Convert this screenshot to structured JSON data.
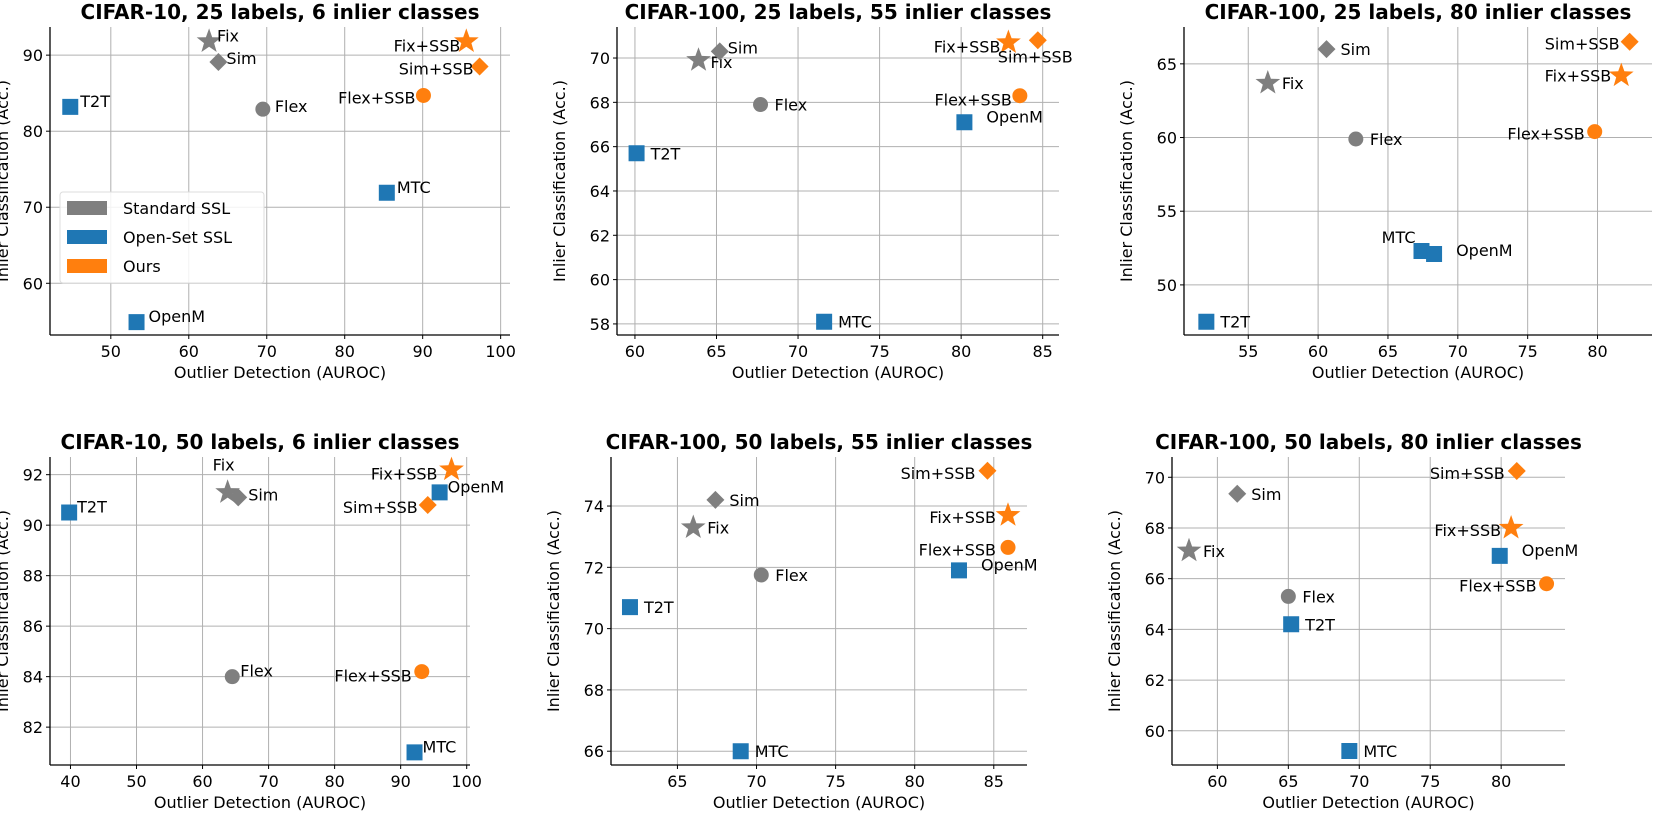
{
  "colors": {
    "Standard SSL": "#7f7f7f",
    "Open-Set SSL": "#1f77b4",
    "Ours": "#ff7f0e"
  },
  "legend": {
    "placement": "lower-left of first panel",
    "entries": [
      {
        "label": "Standard SSL",
        "color": "#7f7f7f"
      },
      {
        "label": "Open-Set SSL",
        "color": "#1f77b4"
      },
      {
        "label": "Ours",
        "color": "#ff7f0e"
      }
    ]
  },
  "chart_data": [
    {
      "type": "scatter",
      "title": "CIFAR-10, 25 labels, 6 inlier classes",
      "xlabel": "Outlier Detection (AUROC)",
      "ylabel": "Inlier Classification (Acc.)",
      "xlim": [
        42.2,
        101.2
      ],
      "ylim": [
        53.2,
        93.7
      ],
      "xticks": [
        50,
        60,
        70,
        80,
        90,
        100
      ],
      "yticks": [
        60,
        70,
        80,
        90
      ],
      "grid": true,
      "legend": true,
      "points": [
        {
          "label": "Fix",
          "group": "Standard SSL",
          "marker": "star",
          "x": 62.6,
          "y": 91.8
        },
        {
          "label": "Sim",
          "group": "Standard SSL",
          "marker": "diamond",
          "x": 63.8,
          "y": 89.1
        },
        {
          "label": "Flex",
          "group": "Standard SSL",
          "marker": "circle",
          "x": 69.5,
          "y": 82.9
        },
        {
          "label": "T2T",
          "group": "Open-Set SSL",
          "marker": "square",
          "x": 44.8,
          "y": 83.2
        },
        {
          "label": "MTC",
          "group": "Open-Set SSL",
          "marker": "square",
          "x": 85.4,
          "y": 71.9
        },
        {
          "label": "OpenM",
          "group": "Open-Set SSL",
          "marker": "square",
          "x": 53.3,
          "y": 54.9
        },
        {
          "label": "Fix+SSB",
          "group": "Ours",
          "marker": "star",
          "x": 95.6,
          "y": 91.8
        },
        {
          "label": "Sim+SSB",
          "group": "Ours",
          "marker": "diamond",
          "x": 97.3,
          "y": 88.5
        },
        {
          "label": "Flex+SSB",
          "group": "Ours",
          "marker": "circle",
          "x": 90.1,
          "y": 84.7
        }
      ]
    },
    {
      "type": "scatter",
      "title": "CIFAR-100, 25 labels, 55 inlier classes",
      "xlabel": "Outlier Detection (AUROC)",
      "ylabel": "Inlier Classification (Acc.)",
      "xlim": [
        58.9,
        86.0
      ],
      "ylim": [
        57.5,
        71.4
      ],
      "xticks": [
        60,
        65,
        70,
        75,
        80,
        85
      ],
      "yticks": [
        58,
        60,
        62,
        64,
        66,
        68,
        70
      ],
      "grid": true,
      "legend": false,
      "points": [
        {
          "label": "Fix",
          "group": "Standard SSL",
          "marker": "star",
          "x": 63.9,
          "y": 69.9
        },
        {
          "label": "Sim",
          "group": "Standard SSL",
          "marker": "diamond",
          "x": 65.2,
          "y": 70.3
        },
        {
          "label": "Flex",
          "group": "Standard SSL",
          "marker": "circle",
          "x": 67.7,
          "y": 67.9
        },
        {
          "label": "T2T",
          "group": "Open-Set SSL",
          "marker": "square",
          "x": 60.1,
          "y": 65.7
        },
        {
          "label": "MTC",
          "group": "Open-Set SSL",
          "marker": "square",
          "x": 71.6,
          "y": 58.1
        },
        {
          "label": "OpenM",
          "group": "Open-Set SSL",
          "marker": "square",
          "x": 80.2,
          "y": 67.1
        },
        {
          "label": "Fix+SSB",
          "group": "Ours",
          "marker": "star",
          "x": 82.9,
          "y": 70.7
        },
        {
          "label": "Sim+SSB",
          "group": "Ours",
          "marker": "diamond",
          "x": 84.7,
          "y": 70.8
        },
        {
          "label": "Flex+SSB",
          "group": "Ours",
          "marker": "circle",
          "x": 83.6,
          "y": 68.3
        }
      ]
    },
    {
      "type": "scatter",
      "title": "CIFAR-100, 25 labels, 80 inlier classes",
      "xlabel": "Outlier Detection (AUROC)",
      "ylabel": "Inlier Classification (Acc.)",
      "xlim": [
        50.4,
        83.9
      ],
      "ylim": [
        46.6,
        67.5
      ],
      "xticks": [
        55,
        60,
        65,
        70,
        75,
        80
      ],
      "yticks": [
        50,
        55,
        60,
        65
      ],
      "grid": true,
      "legend": false,
      "points": [
        {
          "label": "Fix",
          "group": "Standard SSL",
          "marker": "star",
          "x": 56.4,
          "y": 63.7
        },
        {
          "label": "Sim",
          "group": "Standard SSL",
          "marker": "diamond",
          "x": 60.6,
          "y": 66.0
        },
        {
          "label": "Flex",
          "group": "Standard SSL",
          "marker": "circle",
          "x": 62.7,
          "y": 59.9
        },
        {
          "label": "T2T",
          "group": "Open-Set SSL",
          "marker": "square",
          "x": 52.0,
          "y": 47.5
        },
        {
          "label": "MTC",
          "group": "Open-Set SSL",
          "marker": "square",
          "x": 67.4,
          "y": 52.3
        },
        {
          "label": "OpenM",
          "group": "Open-Set SSL",
          "marker": "square",
          "x": 68.3,
          "y": 52.1
        },
        {
          "label": "Fix+SSB",
          "group": "Ours",
          "marker": "star",
          "x": 81.7,
          "y": 64.2
        },
        {
          "label": "Sim+SSB",
          "group": "Ours",
          "marker": "diamond",
          "x": 82.3,
          "y": 66.5
        },
        {
          "label": "Flex+SSB",
          "group": "Ours",
          "marker": "circle",
          "x": 79.8,
          "y": 60.4
        }
      ]
    },
    {
      "type": "scatter",
      "title": "CIFAR-10, 50 labels, 6 inlier classes",
      "xlabel": "Outlier Detection (AUROC)",
      "ylabel": "Inlier Classification (Acc.)",
      "xlim": [
        36.9,
        100.5
      ],
      "ylim": [
        80.5,
        92.7
      ],
      "xticks": [
        40,
        50,
        60,
        70,
        80,
        90,
        100
      ],
      "yticks": [
        82,
        84,
        86,
        88,
        90,
        92
      ],
      "grid": true,
      "legend": false,
      "points": [
        {
          "label": "Fix",
          "group": "Standard SSL",
          "marker": "star",
          "x": 63.8,
          "y": 91.3
        },
        {
          "label": "Sim",
          "group": "Standard SSL",
          "marker": "diamond",
          "x": 65.4,
          "y": 91.1
        },
        {
          "label": "Flex",
          "group": "Standard SSL",
          "marker": "circle",
          "x": 64.5,
          "y": 84.0
        },
        {
          "label": "T2T",
          "group": "Open-Set SSL",
          "marker": "square",
          "x": 39.8,
          "y": 90.5
        },
        {
          "label": "MTC",
          "group": "Open-Set SSL",
          "marker": "square",
          "x": 92.1,
          "y": 81.0
        },
        {
          "label": "OpenM",
          "group": "Open-Set SSL",
          "marker": "square",
          "x": 95.9,
          "y": 91.3
        },
        {
          "label": "Fix+SSB",
          "group": "Ours",
          "marker": "star",
          "x": 97.7,
          "y": 92.2
        },
        {
          "label": "Sim+SSB",
          "group": "Ours",
          "marker": "diamond",
          "x": 94.1,
          "y": 90.8
        },
        {
          "label": "Flex+SSB",
          "group": "Ours",
          "marker": "circle",
          "x": 93.2,
          "y": 84.2
        }
      ]
    },
    {
      "type": "scatter",
      "title": "CIFAR-100, 50 labels, 55 inlier classes",
      "xlabel": "Outlier Detection (AUROC)",
      "ylabel": "Inlier Classification (Acc.)",
      "xlim": [
        60.8,
        87.1
      ],
      "ylim": [
        65.55,
        75.6
      ],
      "xticks": [
        65,
        70,
        75,
        80,
        85
      ],
      "yticks": [
        66,
        68,
        70,
        72,
        74
      ],
      "grid": true,
      "legend": false,
      "points": [
        {
          "label": "Fix",
          "group": "Standard SSL",
          "marker": "star",
          "x": 66.0,
          "y": 73.3
        },
        {
          "label": "Sim",
          "group": "Standard SSL",
          "marker": "diamond",
          "x": 67.4,
          "y": 74.2
        },
        {
          "label": "Flex",
          "group": "Standard SSL",
          "marker": "circle",
          "x": 70.3,
          "y": 71.75
        },
        {
          "label": "T2T",
          "group": "Open-Set SSL",
          "marker": "square",
          "x": 62.0,
          "y": 70.7
        },
        {
          "label": "MTC",
          "group": "Open-Set SSL",
          "marker": "square",
          "x": 69.0,
          "y": 66.0
        },
        {
          "label": "OpenM",
          "group": "Open-Set SSL",
          "marker": "square",
          "x": 82.8,
          "y": 71.9
        },
        {
          "label": "Fix+SSB",
          "group": "Ours",
          "marker": "star",
          "x": 85.9,
          "y": 73.7
        },
        {
          "label": "Sim+SSB",
          "group": "Ours",
          "marker": "diamond",
          "x": 84.6,
          "y": 75.15
        },
        {
          "label": "Flex+SSB",
          "group": "Ours",
          "marker": "circle",
          "x": 85.9,
          "y": 72.65
        }
      ]
    },
    {
      "type": "scatter",
      "title": "CIFAR-100, 50 labels, 80 inlier classes",
      "xlabel": "Outlier Detection (AUROC)",
      "ylabel": "Inlier Classification (Acc.)",
      "xlim": [
        56.8,
        84.5
      ],
      "ylim": [
        58.65,
        70.8
      ],
      "xticks": [
        60,
        65,
        70,
        75,
        80
      ],
      "yticks": [
        60,
        62,
        64,
        66,
        68,
        70
      ],
      "grid": true,
      "legend": false,
      "points": [
        {
          "label": "Fix",
          "group": "Standard SSL",
          "marker": "star",
          "x": 58.0,
          "y": 67.1
        },
        {
          "label": "Sim",
          "group": "Standard SSL",
          "marker": "diamond",
          "x": 61.4,
          "y": 69.35
        },
        {
          "label": "Flex",
          "group": "Standard SSL",
          "marker": "circle",
          "x": 65.0,
          "y": 65.3
        },
        {
          "label": "T2T",
          "group": "Open-Set SSL",
          "marker": "square",
          "x": 65.2,
          "y": 64.2
        },
        {
          "label": "MTC",
          "group": "Open-Set SSL",
          "marker": "square",
          "x": 69.3,
          "y": 59.2
        },
        {
          "label": "OpenM",
          "group": "Open-Set SSL",
          "marker": "square",
          "x": 79.9,
          "y": 66.9
        },
        {
          "label": "Fix+SSB",
          "group": "Ours",
          "marker": "star",
          "x": 80.7,
          "y": 68.0
        },
        {
          "label": "Sim+SSB",
          "group": "Ours",
          "marker": "diamond",
          "x": 81.1,
          "y": 70.25
        },
        {
          "label": "Flex+SSB",
          "group": "Ours",
          "marker": "circle",
          "x": 83.2,
          "y": 65.8
        }
      ]
    }
  ]
}
